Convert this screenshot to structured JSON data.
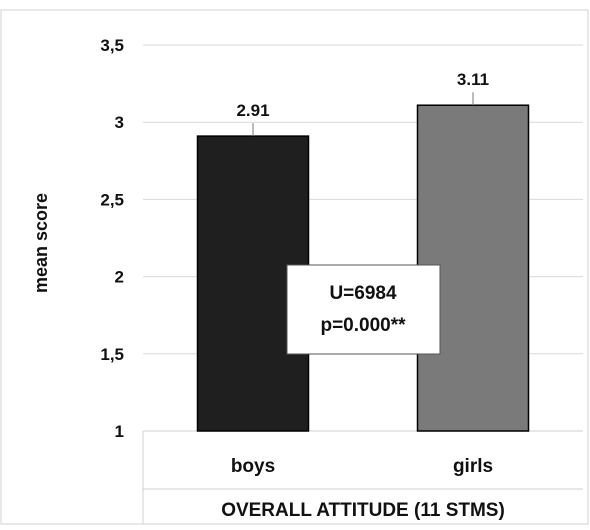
{
  "chart_data": {
    "type": "bar",
    "categories": [
      "boys",
      "girls"
    ],
    "values": [
      2.91,
      3.11
    ],
    "data_labels": [
      "2.91",
      "3.11"
    ],
    "bar_colors": [
      "#1f1f1f",
      "#7a7a7a"
    ],
    "title": "",
    "xlabel": "OVERALL ATTITUDE (11 STMS)",
    "ylabel": "mean score",
    "ylim": [
      1,
      3.5
    ],
    "yticks": [
      1,
      1.5,
      2,
      2.5,
      3,
      3.5
    ],
    "ytick_labels": [
      "1",
      "1,5",
      "2",
      "2,5",
      "3",
      "3,5"
    ],
    "grid": true,
    "legend": "none",
    "annotation": {
      "line1": "U=6984",
      "line2": "p=0.000**"
    }
  }
}
